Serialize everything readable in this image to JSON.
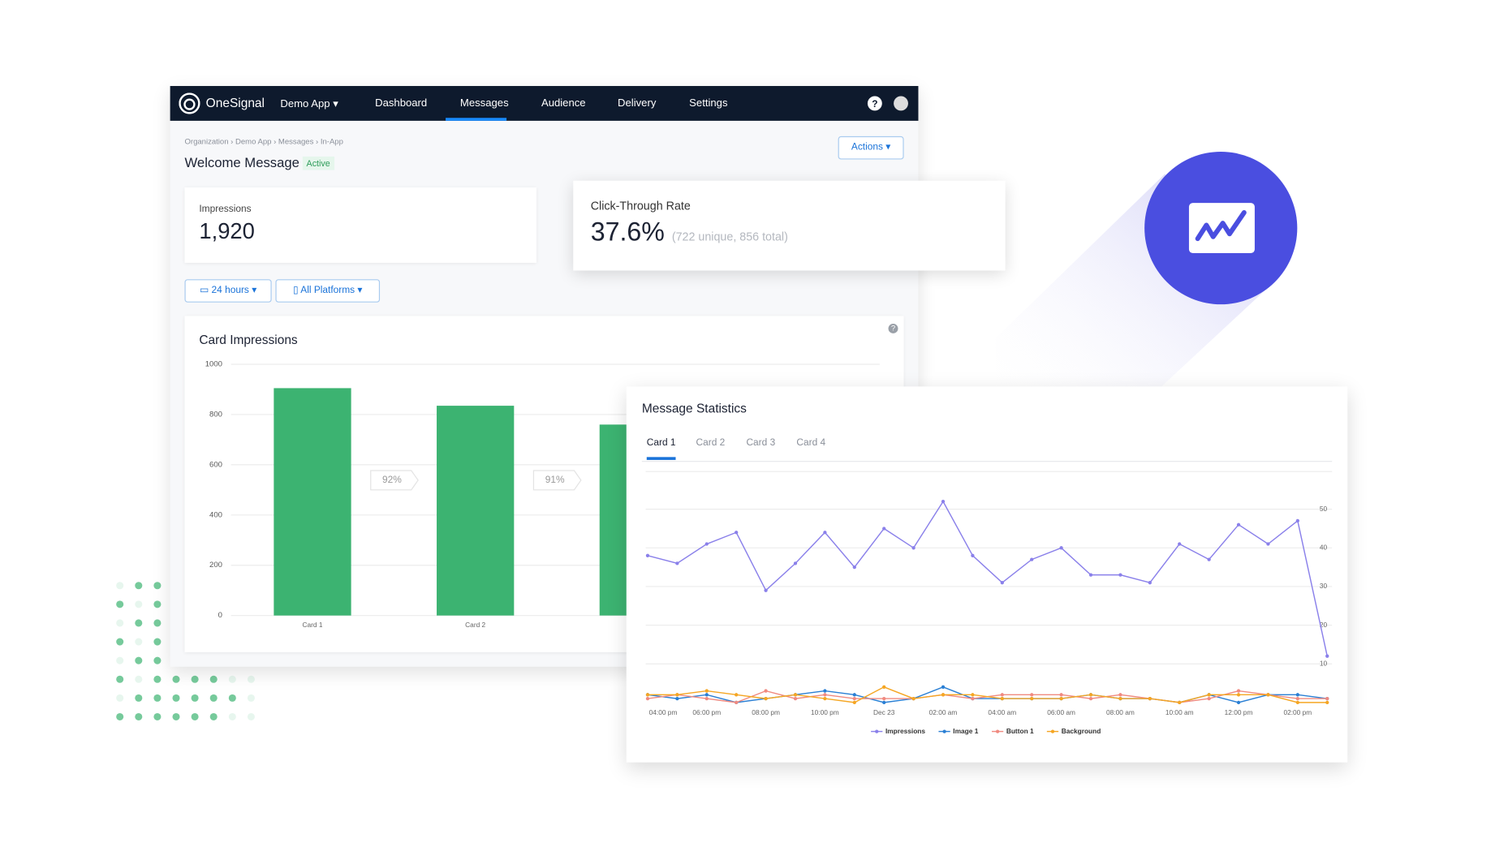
{
  "nav": {
    "brand": "OneSignal",
    "app": "Demo App",
    "items": [
      "Dashboard",
      "Messages",
      "Audience",
      "Delivery",
      "Settings"
    ]
  },
  "breadcrumb": [
    "Organization",
    "Demo App",
    "Messages",
    "In-App"
  ],
  "header": {
    "title": "Welcome Message",
    "status": "Active",
    "actions": "Actions"
  },
  "impressions": {
    "label": "Impressions",
    "value": "1,920"
  },
  "ctr": {
    "label": "Click-Through Rate",
    "value": "37.6%",
    "detail": "(722 unique, 856 total)"
  },
  "filters": [
    "24 hours",
    "All Platforms"
  ],
  "card_chart": {
    "type": "bar",
    "title": "Card Impressions",
    "categories": [
      "Card 1",
      "Card 2",
      null
    ],
    "values": [
      905,
      835,
      760
    ],
    "annotations": [
      "92%",
      "91%"
    ],
    "color": "#3cb371",
    "ylim": [
      0,
      1000
    ],
    "yticks": [
      0,
      200,
      400,
      600,
      800,
      1000
    ],
    "grid": true
  },
  "stats_chart": {
    "type": "line",
    "title": "Message Statistics",
    "tabs": [
      "Card 1",
      "Card 2",
      "Card 3",
      "Card 4"
    ],
    "categories": [
      "04:00 pm",
      null,
      "06:00 pm",
      null,
      "08:00 pm",
      null,
      "10:00 pm",
      null,
      "Dec 23",
      null,
      "02:00 am",
      null,
      "04:00 am",
      null,
      "06:00 am",
      null,
      "08:00 am",
      null,
      "10:00 am",
      null,
      "12:00 pm",
      null,
      "02:00 pm",
      null
    ],
    "y2lim": [
      0,
      60
    ],
    "y2ticks": [
      10,
      20,
      30,
      40,
      50
    ],
    "grid": true,
    "series": [
      {
        "name": "Impressions",
        "color": "#8a80ea",
        "axis": "y2",
        "values": [
          38,
          36,
          41,
          44,
          29,
          36,
          44,
          35,
          45,
          40,
          52,
          38,
          31,
          37,
          40,
          33,
          33,
          31,
          41,
          37,
          46,
          41,
          47,
          12
        ]
      },
      {
        "name": "Image 1",
        "color": "#2a7fd4",
        "axis": "y2",
        "values": [
          2,
          1,
          2,
          0,
          1,
          2,
          3,
          2,
          0,
          1,
          4,
          1,
          1,
          1,
          1,
          2,
          1,
          1,
          0,
          2,
          0,
          2,
          2,
          1
        ]
      },
      {
        "name": "Button 1",
        "color": "#f08a80",
        "axis": "y2",
        "values": [
          1,
          2,
          1,
          0,
          3,
          1,
          2,
          1,
          1,
          1,
          2,
          1,
          2,
          2,
          2,
          1,
          2,
          1,
          0,
          1,
          3,
          2,
          1,
          1
        ]
      },
      {
        "name": "Background",
        "color": "#f5a623",
        "axis": "y2",
        "values": [
          2,
          2,
          3,
          2,
          1,
          2,
          1,
          0,
          4,
          1,
          2,
          2,
          1,
          1,
          1,
          2,
          1,
          1,
          0,
          2,
          2,
          2,
          0,
          0
        ]
      }
    ]
  }
}
